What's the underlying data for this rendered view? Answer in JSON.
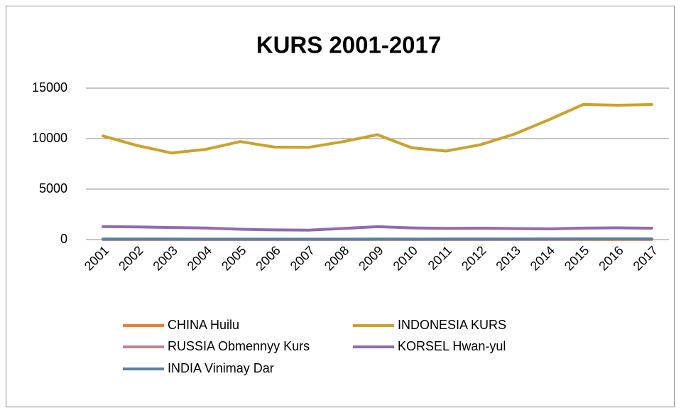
{
  "chart_data": {
    "type": "line",
    "title": "KURS 2001-2017",
    "categories": [
      "2001",
      "2002",
      "2003",
      "2004",
      "2005",
      "2006",
      "2007",
      "2008",
      "2009",
      "2010",
      "2011",
      "2012",
      "2013",
      "2014",
      "2015",
      "2016",
      "2017"
    ],
    "series": [
      {
        "name": "CHINA Huilu",
        "color": "#ed7d31",
        "values": [
          8.28,
          8.28,
          8.28,
          8.28,
          8.19,
          7.97,
          7.61,
          6.95,
          6.83,
          6.77,
          6.46,
          6.31,
          6.2,
          6.14,
          6.23,
          6.64,
          6.75
        ]
      },
      {
        "name": "INDONESIA KURS",
        "color": "#cca22b",
        "values": [
          10260,
          9311,
          8577,
          8939,
          9705,
          9159,
          9141,
          9699,
          10390,
          9090,
          8770,
          9387,
          10461,
          11865,
          13389,
          13308,
          13381
        ]
      },
      {
        "name": "RUSSIA Obmennyy Kurs",
        "color": "#c0868f",
        "values": [
          29.2,
          31.3,
          30.7,
          28.8,
          28.3,
          27.2,
          25.6,
          24.9,
          31.7,
          30.4,
          29.4,
          31.1,
          31.8,
          38.4,
          61.0,
          67.1,
          58.3
        ]
      },
      {
        "name": "KORSEL Hwan-yul",
        "color": "#8e6bb4",
        "values": [
          1291,
          1251,
          1192,
          1145,
          1024,
          955,
          929,
          1102,
          1277,
          1156,
          1108,
          1127,
          1095,
          1053,
          1131,
          1161,
          1130
        ]
      },
      {
        "name": "INDIA Vinimay Dar",
        "color": "#5b80a5",
        "values": [
          47.2,
          48.6,
          46.6,
          45.3,
          44.1,
          45.3,
          41.3,
          43.5,
          48.4,
          45.7,
          46.7,
          53.4,
          58.6,
          61.0,
          64.2,
          67.2,
          65.1
        ]
      }
    ],
    "ylim": [
      0,
      15000
    ],
    "yticks": [
      0,
      5000,
      10000,
      15000
    ],
    "grid": true
  }
}
